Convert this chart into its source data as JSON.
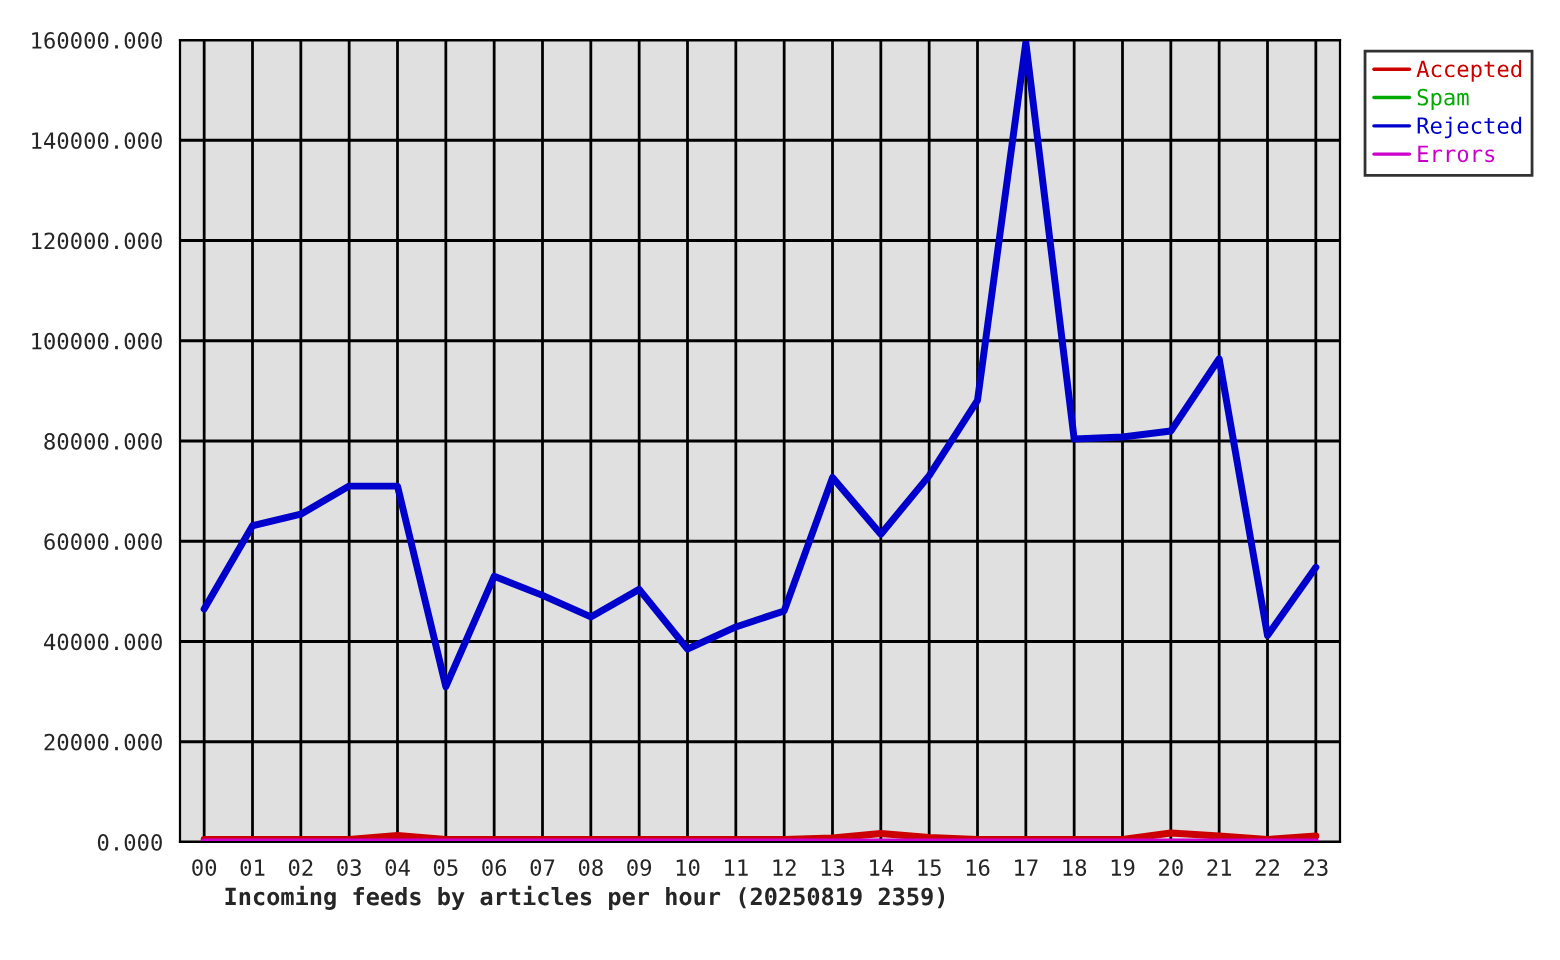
{
  "chart_data": {
    "type": "line",
    "xlabel": "Incoming feeds by articles per hour (20250819 2359)",
    "categories": [
      "00",
      "01",
      "02",
      "03",
      "04",
      "05",
      "06",
      "07",
      "08",
      "09",
      "10",
      "11",
      "12",
      "13",
      "14",
      "15",
      "16",
      "17",
      "18",
      "19",
      "20",
      "21",
      "22",
      "23"
    ],
    "series": [
      {
        "name": "Accepted",
        "color": "#cc0000",
        "values": [
          500,
          500,
          500,
          500,
          1300,
          500,
          500,
          500,
          500,
          500,
          500,
          500,
          500,
          800,
          1700,
          900,
          500,
          500,
          500,
          500,
          1800,
          1200,
          500,
          1200
        ]
      },
      {
        "name": "Spam",
        "color": "#00aa00",
        "values": [
          null,
          null,
          null,
          null,
          null,
          null,
          null,
          null,
          null,
          null,
          null,
          null,
          null,
          null,
          null,
          null,
          null,
          null,
          null,
          null,
          null,
          null,
          null,
          null
        ]
      },
      {
        "name": "Rejected",
        "color": "#0000cc",
        "values": [
          46500,
          63100,
          65400,
          71000,
          71000,
          31000,
          53000,
          49200,
          44900,
          50400,
          38500,
          42900,
          46100,
          72700,
          61400,
          73100,
          88100,
          159500,
          80400,
          80800,
          82000,
          96400,
          41200,
          54800
        ]
      },
      {
        "name": "Errors",
        "color": "#cc00cc",
        "values": [
          0,
          0,
          0,
          0,
          0,
          0,
          0,
          0,
          0,
          0,
          0,
          0,
          0,
          0,
          0,
          0,
          0,
          0,
          0,
          0,
          0,
          0,
          0,
          0
        ]
      }
    ],
    "ylim": [
      0,
      160000
    ],
    "yticks": [
      {
        "value": 0,
        "label": "0.000"
      },
      {
        "value": 20000,
        "label": "20000.000"
      },
      {
        "value": 40000,
        "label": "40000.000"
      },
      {
        "value": 60000,
        "label": "60000.000"
      },
      {
        "value": 80000,
        "label": "80000.000"
      },
      {
        "value": 100000,
        "label": "100000.000"
      },
      {
        "value": 120000,
        "label": "120000.000"
      },
      {
        "value": 140000,
        "label": "140000.000"
      },
      {
        "value": 160000,
        "label": "160000.000"
      }
    ],
    "grid": true,
    "legend": "top right"
  }
}
